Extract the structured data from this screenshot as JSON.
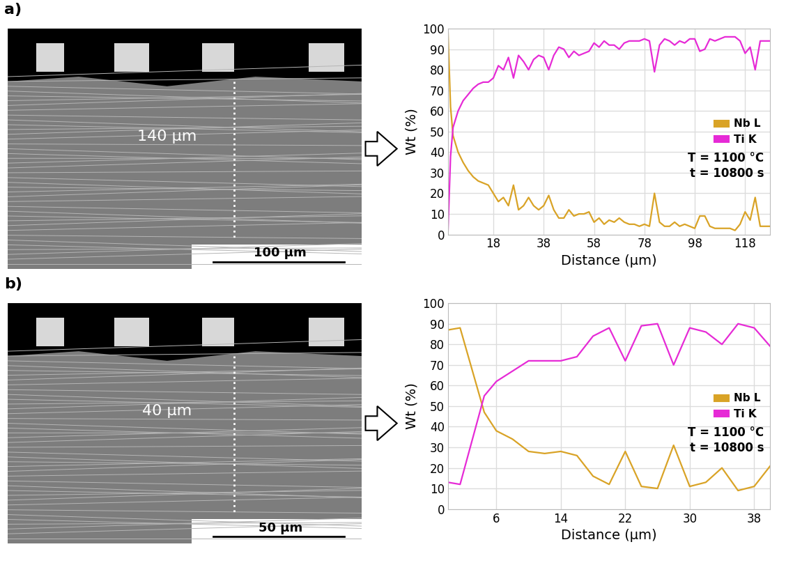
{
  "panel_labels": [
    "a)",
    "b)"
  ],
  "micrographs": [
    {
      "annotation": "140 µm",
      "scale_bar": "100 µm"
    },
    {
      "annotation": "40 µm",
      "scale_bar": "50 µm"
    }
  ],
  "chart_data": [
    {
      "type": "line",
      "x_label": "Distance (µm)",
      "y_label": "Wt (%)",
      "annotations": [
        "T = 1100 °C",
        "t = 10800 s"
      ],
      "x": [
        0,
        1,
        2,
        4,
        6,
        8,
        10,
        12,
        14,
        16,
        18,
        20,
        22,
        24,
        26,
        28,
        30,
        32,
        34,
        36,
        38,
        40,
        42,
        44,
        46,
        48,
        50,
        52,
        54,
        56,
        58,
        60,
        62,
        64,
        66,
        68,
        70,
        72,
        74,
        76,
        78,
        80,
        82,
        84,
        86,
        88,
        90,
        92,
        94,
        96,
        98,
        100,
        102,
        104,
        106,
        108,
        110,
        112,
        114,
        116,
        118,
        120,
        122,
        124,
        126,
        128
      ],
      "series": [
        {
          "name": "Nb L",
          "color": "#d9a326",
          "line_style": "solid",
          "values": [
            98,
            62,
            48,
            40,
            35,
            31,
            28,
            26,
            25,
            24,
            20,
            16,
            18,
            14,
            24,
            12,
            14,
            18,
            14,
            12,
            14,
            19,
            12,
            8,
            8,
            12,
            9,
            10,
            10,
            11,
            6,
            8,
            5,
            7,
            6,
            8,
            6,
            5,
            5,
            4,
            5,
            4,
            20,
            6,
            4,
            4,
            6,
            4,
            5,
            4,
            3,
            9,
            9,
            4,
            3,
            3,
            3,
            3,
            2,
            5,
            11,
            7,
            18,
            4,
            4,
            4
          ]
        },
        {
          "name": "Ti K",
          "color": "#e62ad6",
          "line_style": "solid",
          "values": [
            2,
            38,
            52,
            60,
            65,
            68,
            71,
            73,
            74,
            74,
            76,
            82,
            80,
            86,
            76,
            87,
            84,
            80,
            85,
            87,
            86,
            80,
            87,
            91,
            90,
            86,
            89,
            87,
            88,
            89,
            93,
            91,
            94,
            92,
            92,
            90,
            93,
            94,
            94,
            94,
            95,
            94,
            79,
            92,
            95,
            94,
            92,
            94,
            93,
            95,
            95,
            89,
            90,
            95,
            94,
            95,
            96,
            96,
            96,
            94,
            88,
            91,
            80,
            94,
            94,
            94
          ]
        }
      ],
      "xlim": [
        0,
        128
      ],
      "xticks": [
        18,
        38,
        58,
        78,
        98,
        118
      ],
      "ylim": [
        0,
        100
      ],
      "yticks": [
        0,
        10,
        20,
        30,
        40,
        50,
        60,
        70,
        80,
        90,
        100
      ],
      "grid": true,
      "legend": "center right"
    },
    {
      "type": "line",
      "x_label": "Distance (µm)",
      "y_label": "Wt (%)",
      "annotations": [
        "T = 1100 °C",
        "t = 10800 s"
      ],
      "x": [
        0,
        1.5,
        4.5,
        6,
        8,
        10,
        12,
        14,
        16,
        18,
        20,
        22,
        24,
        26,
        28,
        30,
        32,
        34,
        36,
        38,
        40
      ],
      "series": [
        {
          "name": "Nb L",
          "color": "#d9a326",
          "line_style": "solid",
          "values": [
            87,
            88,
            47,
            38,
            34,
            28,
            27,
            28,
            26,
            16,
            12,
            28,
            11,
            10,
            31,
            11,
            13,
            20,
            9,
            11,
            21
          ]
        },
        {
          "name": "Ti K",
          "color": "#e62ad6",
          "line_style": "solid",
          "values": [
            13,
            12,
            55,
            62,
            67,
            72,
            72,
            72,
            74,
            84,
            88,
            72,
            89,
            90,
            70,
            88,
            86,
            80,
            90,
            88,
            79
          ]
        }
      ],
      "xlim": [
        0,
        40
      ],
      "xticks": [
        6,
        14,
        22,
        30,
        38
      ],
      "ylim": [
        0,
        100
      ],
      "yticks": [
        0,
        10,
        20,
        30,
        40,
        50,
        60,
        70,
        80,
        90,
        100
      ],
      "grid": true,
      "legend": "center right"
    }
  ]
}
